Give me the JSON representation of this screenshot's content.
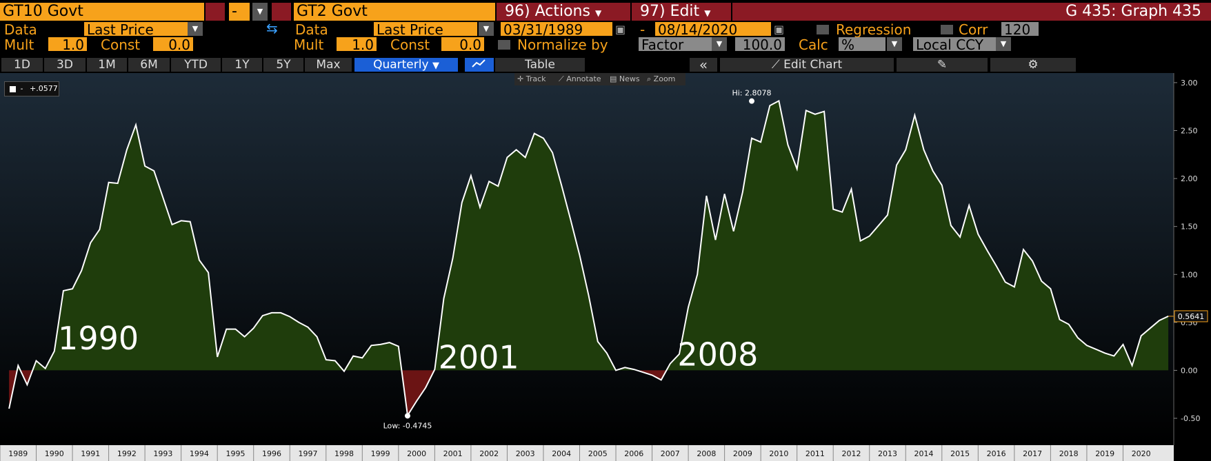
{
  "header": {
    "security1": "GT10 Govt",
    "operator": "-",
    "security2": "GT2 Govt",
    "actions_label": "96) Actions",
    "edit_label": "97) Edit",
    "graph_title": "G 435: Graph 435"
  },
  "row2": {
    "data_label1": "Data",
    "field1": "Last Price",
    "data_label2": "Data",
    "field2": "Last Price",
    "start_date": "03/31/1989",
    "dash": "-",
    "end_date": "08/14/2020",
    "regression": "Regression",
    "corr": "Corr",
    "corr_value": "120"
  },
  "row3": {
    "mult_label1": "Mult",
    "mult1": "1.0",
    "const_label1": "Const",
    "const1": "0.0",
    "mult_label2": "Mult",
    "mult2": "1.0",
    "const_label2": "Const",
    "const2": "0.0",
    "normalize": "Normalize by",
    "factor": "Factor",
    "factor_value": "100.0",
    "calc": "Calc",
    "calc_value": "%",
    "ccy": "Local CCY"
  },
  "tabs": {
    "d1": "1D",
    "d3": "3D",
    "m1": "1M",
    "m6": "6M",
    "ytd": "YTD",
    "y1": "1Y",
    "y5": "5Y",
    "max": "Max",
    "quarterly": "Quarterly",
    "table": "Table",
    "collapse": "«",
    "edit_chart": "Edit Chart"
  },
  "tools": {
    "track": "Track",
    "annotate": "Annotate",
    "news": "News",
    "zoom": "Zoom"
  },
  "legend": {
    "value": "+.0577",
    "dash": "-"
  },
  "colors": {
    "positive_fill": "#1f3d0c",
    "negative_fill": "#6b1414",
    "line": "#ffffff",
    "accent": "#f7a21b",
    "maroon": "#8b1a24"
  },
  "chart_data": {
    "type": "area",
    "x_start": 1989.25,
    "x_step": 0.25,
    "values": [
      -0.4,
      0.05,
      -0.15,
      0.1,
      0.02,
      0.2,
      0.83,
      0.85,
      1.04,
      1.33,
      1.47,
      1.96,
      1.95,
      2.3,
      2.56,
      2.13,
      2.08,
      1.8,
      1.52,
      1.56,
      1.55,
      1.15,
      1.02,
      0.14,
      0.43,
      0.43,
      0.35,
      0.44,
      0.57,
      0.6,
      0.6,
      0.56,
      0.5,
      0.45,
      0.35,
      0.11,
      0.1,
      -0.01,
      0.15,
      0.13,
      0.26,
      0.27,
      0.29,
      0.25,
      -0.47,
      -0.32,
      -0.18,
      0.01,
      0.75,
      1.17,
      1.75,
      2.03,
      1.7,
      1.97,
      1.92,
      2.22,
      2.3,
      2.22,
      2.47,
      2.42,
      2.27,
      1.93,
      1.57,
      1.2,
      0.78,
      0.3,
      0.18,
      0.0,
      0.03,
      0.01,
      -0.02,
      -0.05,
      -0.1,
      0.07,
      0.17,
      0.66,
      1.0,
      1.82,
      1.36,
      1.84,
      1.45,
      1.86,
      2.42,
      2.38,
      2.76,
      2.81,
      2.35,
      2.1,
      2.71,
      2.67,
      2.7,
      1.68,
      1.65,
      1.89,
      1.35,
      1.4,
      1.51,
      1.62,
      2.14,
      2.3,
      2.66,
      2.3,
      2.08,
      1.93,
      1.51,
      1.39,
      1.72,
      1.42,
      1.25,
      1.09,
      0.92,
      0.87,
      1.26,
      1.14,
      0.93,
      0.85,
      0.53,
      0.48,
      0.34,
      0.26,
      0.22,
      0.18,
      0.15,
      0.27,
      0.05,
      0.36,
      0.44,
      0.52,
      0.5641
    ],
    "y_ticks": [
      "3.00",
      "2.50",
      "2.00",
      "1.50",
      "1.00",
      "0.50",
      "0.00",
      "-0.50"
    ],
    "ylim": [
      -0.78,
      3.1
    ],
    "x_labels": [
      "1989",
      "1990",
      "1991",
      "1992",
      "1993",
      "1994",
      "1995",
      "1996",
      "1997",
      "1998",
      "1999",
      "2000",
      "2001",
      "2002",
      "2003",
      "2004",
      "2005",
      "2006",
      "2007",
      "2008",
      "2009",
      "2010",
      "2011",
      "2012",
      "2013",
      "2014",
      "2015",
      "2016",
      "2017",
      "2018",
      "2019",
      "2020"
    ],
    "high_label": "Hi: 2.8078",
    "high_value": 2.8078,
    "high_x": 2009.75,
    "low_label": "Low: -0.4745",
    "low_value": -0.4745,
    "low_x": 2000.25,
    "last_value_label": "0.5641",
    "last_value": 0.5641,
    "annotations": [
      {
        "text": "1990",
        "x": 1990.6,
        "y": 0.22
      },
      {
        "text": "2001",
        "x": 2001.1,
        "y": 0.02
      },
      {
        "text": "2008",
        "x": 2007.7,
        "y": 0.05
      }
    ]
  }
}
